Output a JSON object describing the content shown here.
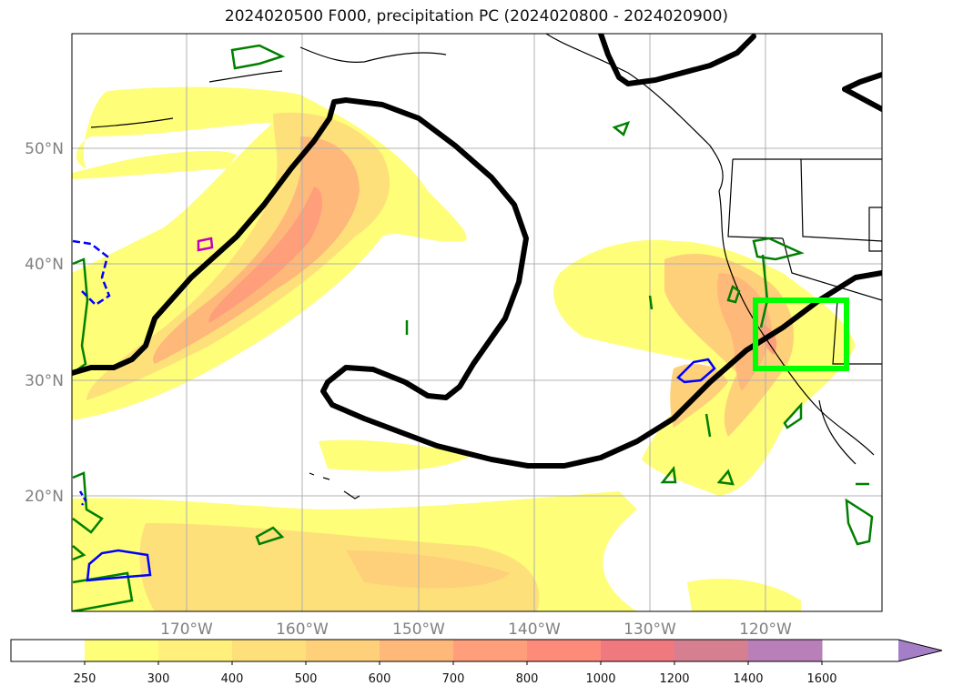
{
  "title": "2024020500 F000, precipitation PC (2024020800 - 2024020900)",
  "map": {
    "lat_labels": [
      "50°N",
      "40°N",
      "30°N",
      "20°N"
    ],
    "lon_labels": [
      "170°W",
      "160°W",
      "150°W",
      "140°W",
      "130°W",
      "120°W"
    ]
  },
  "colorbar": {
    "ticks": [
      "250",
      "300",
      "400",
      "500",
      "600",
      "700",
      "800",
      "1000",
      "1200",
      "1400",
      "1600"
    ],
    "colors": [
      "#ffffff",
      "#fefe78",
      "#fef07a",
      "#fee07a",
      "#fed07a",
      "#feb87a",
      "#fe9e7a",
      "#fe8a7a",
      "#f0787f",
      "#d67f90",
      "#b87fb8",
      "#a47fc8"
    ],
    "extend": "max"
  },
  "overlay": {
    "contour_color": "#000000",
    "box_color": "#00ff00",
    "green_color": "#008000",
    "blue_color": "#0000ff",
    "magenta_color": "#c000c0"
  }
}
